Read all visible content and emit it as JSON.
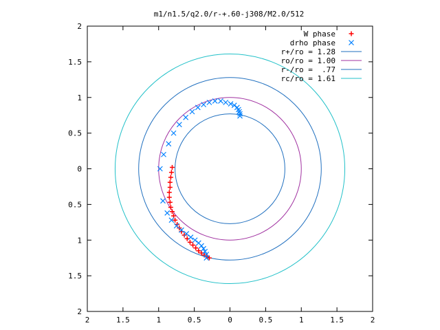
{
  "chart_data": {
    "type": "scatter",
    "title": "m1/n1.5/q2.0/r-+.60-j308/M2.0/512",
    "xlabel": "",
    "ylabel": "",
    "xlim": [
      -2,
      2
    ],
    "ylim": [
      -2,
      2
    ],
    "x_ticks": [
      -2,
      -1.5,
      -1,
      -0.5,
      0,
      0.5,
      1,
      1.5,
      2
    ],
    "x_tick_labels": [
      "2",
      "1.5",
      "1",
      "0.5",
      "0",
      "0.5",
      "1",
      "1.5",
      "2"
    ],
    "y_ticks": [
      2,
      1.5,
      1,
      0.5,
      0,
      -0.5,
      -1,
      -1.5,
      -2
    ],
    "y_tick_labels": [
      "2",
      "1.5",
      "1",
      "0.5",
      "0",
      "0.5",
      "1",
      "1.5",
      "2"
    ],
    "grid": false,
    "legend_position": "top-right",
    "series": [
      {
        "name": "W phase",
        "marker": "plus",
        "color": "#ff0000",
        "x": [
          -0.81,
          -0.82,
          -0.83,
          -0.84,
          -0.84,
          -0.85,
          -0.85,
          -0.84,
          -0.83,
          -0.81,
          -0.79,
          -0.77,
          -0.74,
          -0.71,
          -0.68,
          -0.64,
          -0.6,
          -0.56,
          -0.52,
          -0.48,
          -0.44,
          -0.4,
          -0.36,
          -0.32,
          -0.29
        ],
        "y": [
          0.02,
          -0.05,
          -0.12,
          -0.19,
          -0.26,
          -0.33,
          -0.4,
          -0.47,
          -0.54,
          -0.6,
          -0.66,
          -0.72,
          -0.78,
          -0.83,
          -0.88,
          -0.93,
          -0.98,
          -1.03,
          -1.07,
          -1.11,
          -1.15,
          -1.18,
          -1.21,
          -1.23,
          -1.25
        ]
      },
      {
        "name": "drho phase",
        "marker": "x",
        "color": "#0080ff",
        "x": [
          -0.98,
          -0.93,
          -0.86,
          -0.79,
          -0.71,
          -0.62,
          -0.53,
          -0.45,
          -0.37,
          -0.29,
          -0.21,
          -0.13,
          -0.06,
          0.01,
          0.06,
          0.1,
          0.12,
          0.13,
          0.14,
          0.14,
          -0.94,
          -0.88,
          -0.82,
          -0.75,
          -0.68,
          -0.61,
          -0.55,
          -0.49,
          -0.44,
          -0.4,
          -0.37,
          -0.35,
          -0.33,
          -0.33
        ],
        "y": [
          0.0,
          0.2,
          0.35,
          0.5,
          0.62,
          0.72,
          0.8,
          0.86,
          0.9,
          0.93,
          0.95,
          0.95,
          0.93,
          0.91,
          0.89,
          0.86,
          0.83,
          0.8,
          0.77,
          0.74,
          -0.45,
          -0.62,
          -0.72,
          -0.8,
          -0.86,
          -0.91,
          -0.96,
          -1.0,
          -1.04,
          -1.08,
          -1.12,
          -1.16,
          -1.2,
          -1.25
        ]
      }
    ],
    "circles": [
      {
        "name": "r+/ro = 1.28",
        "radius": 1.28,
        "color": "#1f6fbf"
      },
      {
        "name": "ro/ro = 1.00",
        "radius": 1.0,
        "color": "#a030a0"
      },
      {
        "name": "r-/ro =  .77",
        "radius": 0.77,
        "color": "#1f6fbf"
      },
      {
        "name": "rc/ro = 1.61",
        "radius": 1.61,
        "color": "#20c0c8"
      }
    ]
  }
}
